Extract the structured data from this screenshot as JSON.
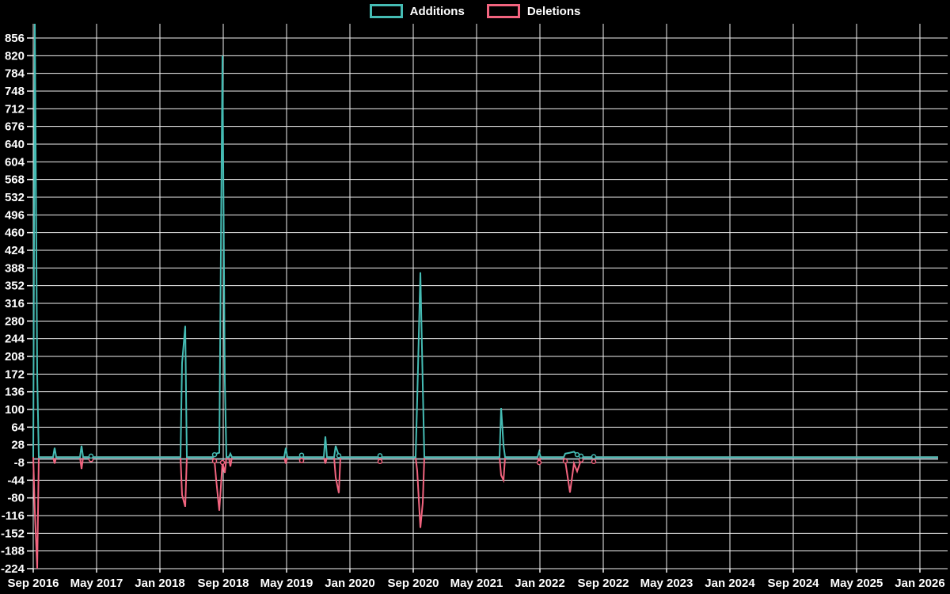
{
  "legend": {
    "items": [
      {
        "label": "Additions",
        "color": "#45bcb4"
      },
      {
        "label": "Deletions",
        "color": "#f2647f"
      }
    ]
  },
  "chart_data": {
    "type": "line",
    "title": "",
    "legend_position": "top center",
    "grid": true,
    "background_color": "#000000",
    "gridline_color": "#f2f2f2",
    "text_color": "#ffffff",
    "zero_line_color": "#9fb6bd",
    "x_axis": {
      "unit": "months since Sep 2016",
      "labels": [
        "Sep 2016",
        "May 2017",
        "Jan 2018",
        "Sep 2018",
        "May 2019",
        "Jan 2020",
        "Sep 2020",
        "May 2021",
        "Jan 2022",
        "Sep 2022",
        "May 2023",
        "Jan 2024",
        "Sep 2024",
        "May 2025",
        "Jan 2026"
      ],
      "months_between_labels": 8,
      "range_months": [
        0,
        112
      ],
      "data_end_month": 114.3
    },
    "y_axis": {
      "min": -224,
      "max": 856,
      "step": 36,
      "ticks": [
        856,
        820,
        784,
        748,
        712,
        676,
        640,
        604,
        568,
        532,
        496,
        460,
        424,
        388,
        352,
        316,
        280,
        244,
        208,
        172,
        136,
        100,
        64,
        28,
        -8,
        -44,
        -80,
        -116,
        -152,
        -188,
        -224
      ]
    },
    "series": [
      {
        "name": "Additions",
        "color": "#45bcb4",
        "baseline": 3,
        "points": [
          [
            0.2,
            900
          ],
          [
            0.5,
            172
          ],
          [
            2.7,
            22
          ],
          [
            6.1,
            26
          ],
          [
            7.3,
            5
          ],
          [
            18.8,
            195
          ],
          [
            19.2,
            270
          ],
          [
            22.9,
            8
          ],
          [
            23.1,
            10
          ],
          [
            23.5,
            12
          ],
          [
            23.9,
            820
          ],
          [
            24.2,
            157
          ],
          [
            24.9,
            10
          ],
          [
            31.9,
            22
          ],
          [
            33.9,
            7
          ],
          [
            36.9,
            45
          ],
          [
            38.2,
            26
          ],
          [
            38.6,
            6
          ],
          [
            43.8,
            6
          ],
          [
            48.5,
            120
          ],
          [
            48.9,
            379
          ],
          [
            49.2,
            150
          ],
          [
            59.1,
            103
          ],
          [
            59.4,
            27
          ],
          [
            63.9,
            14
          ],
          [
            67.2,
            10
          ],
          [
            67.8,
            12
          ],
          [
            68.3,
            14
          ],
          [
            68.7,
            8
          ],
          [
            69.2,
            5
          ],
          [
            70.8,
            4
          ]
        ]
      },
      {
        "name": "Deletions",
        "color": "#f2647f",
        "baseline": 3,
        "points": [
          [
            0.2,
            -108
          ],
          [
            0.5,
            -224
          ],
          [
            2.7,
            -10
          ],
          [
            6.1,
            -21
          ],
          [
            7.3,
            -2
          ],
          [
            18.8,
            -74
          ],
          [
            19.2,
            -98
          ],
          [
            22.9,
            -5
          ],
          [
            23.1,
            -42
          ],
          [
            23.5,
            -106
          ],
          [
            23.9,
            -8
          ],
          [
            24.2,
            -29
          ],
          [
            24.9,
            -16
          ],
          [
            31.9,
            -10
          ],
          [
            33.9,
            -4
          ],
          [
            36.9,
            -10
          ],
          [
            38.2,
            -38
          ],
          [
            38.6,
            -70
          ],
          [
            43.8,
            -6
          ],
          [
            48.5,
            -25
          ],
          [
            48.9,
            -141
          ],
          [
            49.2,
            -90
          ],
          [
            59.1,
            -34
          ],
          [
            59.4,
            -44
          ],
          [
            63.9,
            -8
          ],
          [
            67.2,
            -5
          ],
          [
            67.8,
            -69
          ],
          [
            68.3,
            -10
          ],
          [
            68.7,
            -26
          ],
          [
            69.2,
            -3
          ],
          [
            70.8,
            -6
          ]
        ]
      }
    ]
  }
}
